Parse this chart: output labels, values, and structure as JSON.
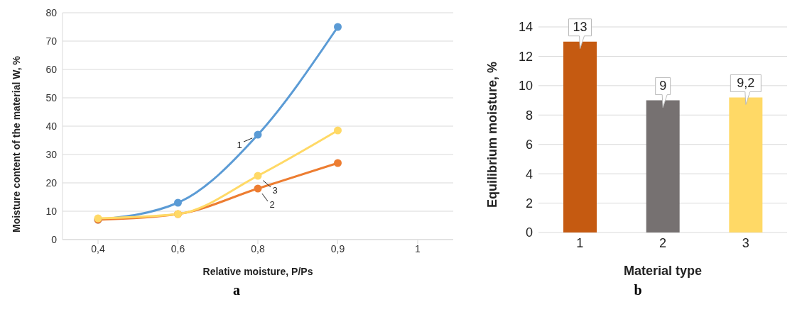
{
  "chart_data": [
    {
      "type": "line",
      "xlabel": "Relative moisture, P/Ps",
      "ylabel": "Moisture content of the material W, %",
      "categories": [
        "0,4",
        "0,6",
        "0,8",
        "0,9",
        "1"
      ],
      "series": [
        {
          "name": "1",
          "color": "#5b9bd5",
          "values": [
            7,
            13,
            37,
            75,
            null
          ]
        },
        {
          "name": "2",
          "color": "#ed7d31",
          "values": [
            7,
            9,
            18,
            27,
            null
          ]
        },
        {
          "name": "3",
          "color": "#ffd966",
          "values": [
            7.5,
            9,
            22.5,
            38.5,
            null
          ]
        }
      ],
      "ylim": [
        0,
        80
      ],
      "yticks": [
        0,
        10,
        20,
        30,
        40,
        50,
        60,
        70,
        80
      ],
      "grid": "y",
      "marker": "circle",
      "line_style": "solid",
      "legend": false,
      "annotations": [
        "a"
      ]
    },
    {
      "type": "bar",
      "xlabel": "Material type",
      "ylabel": "Equilibrium moisture, %",
      "categories": [
        "1",
        "2",
        "3"
      ],
      "values": [
        13,
        9,
        9.2
      ],
      "colors": [
        "#c55a11",
        "#767171",
        "#ffd966"
      ],
      "value_labels": [
        "13",
        "9",
        "9,2"
      ],
      "ylim": [
        0,
        14
      ],
      "yticks": [
        0,
        2,
        4,
        6,
        8,
        10,
        12,
        14
      ],
      "grid": "y",
      "annotations": [
        "b"
      ]
    }
  ]
}
